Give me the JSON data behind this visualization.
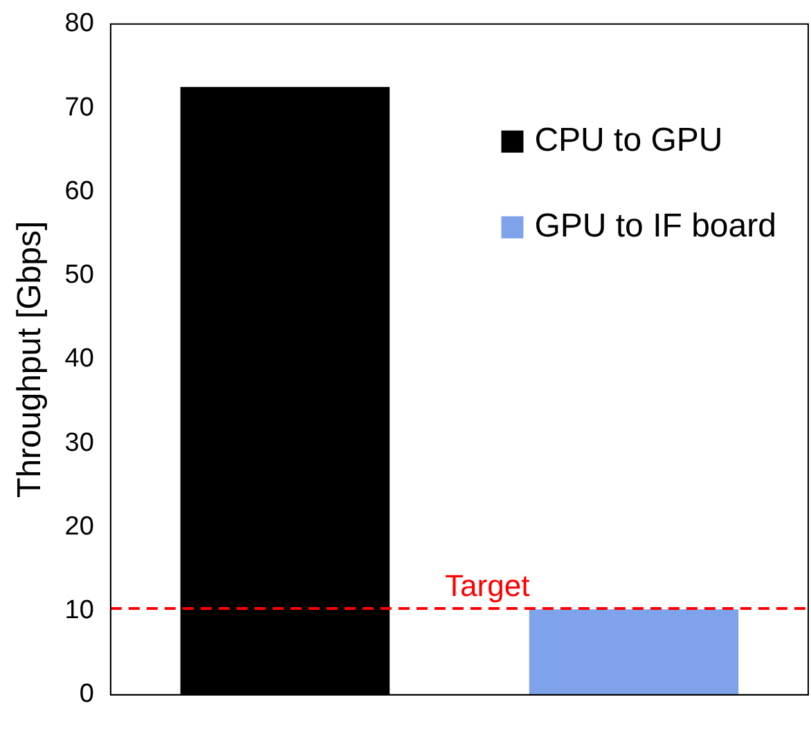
{
  "chart_data": {
    "type": "bar",
    "ylabel": "Throughput [Gbps]",
    "categories": [
      null,
      null
    ],
    "series": [
      {
        "name": "CPU to GPU",
        "color": "#000000",
        "values": [
          72.5,
          null
        ]
      },
      {
        "name": "GPU to IF board",
        "color": "#7fa3ea",
        "values": [
          null,
          10.2
        ]
      }
    ],
    "ylim": [
      0,
      80
    ],
    "yticks": [
      0,
      10,
      20,
      30,
      40,
      50,
      60,
      70,
      80
    ],
    "grid": false,
    "legend": "top right",
    "ref_lines": [
      {
        "axis": "y",
        "value": 10.3,
        "label": "Target",
        "color": "#ff0000",
        "line_style": "dashed"
      }
    ]
  }
}
